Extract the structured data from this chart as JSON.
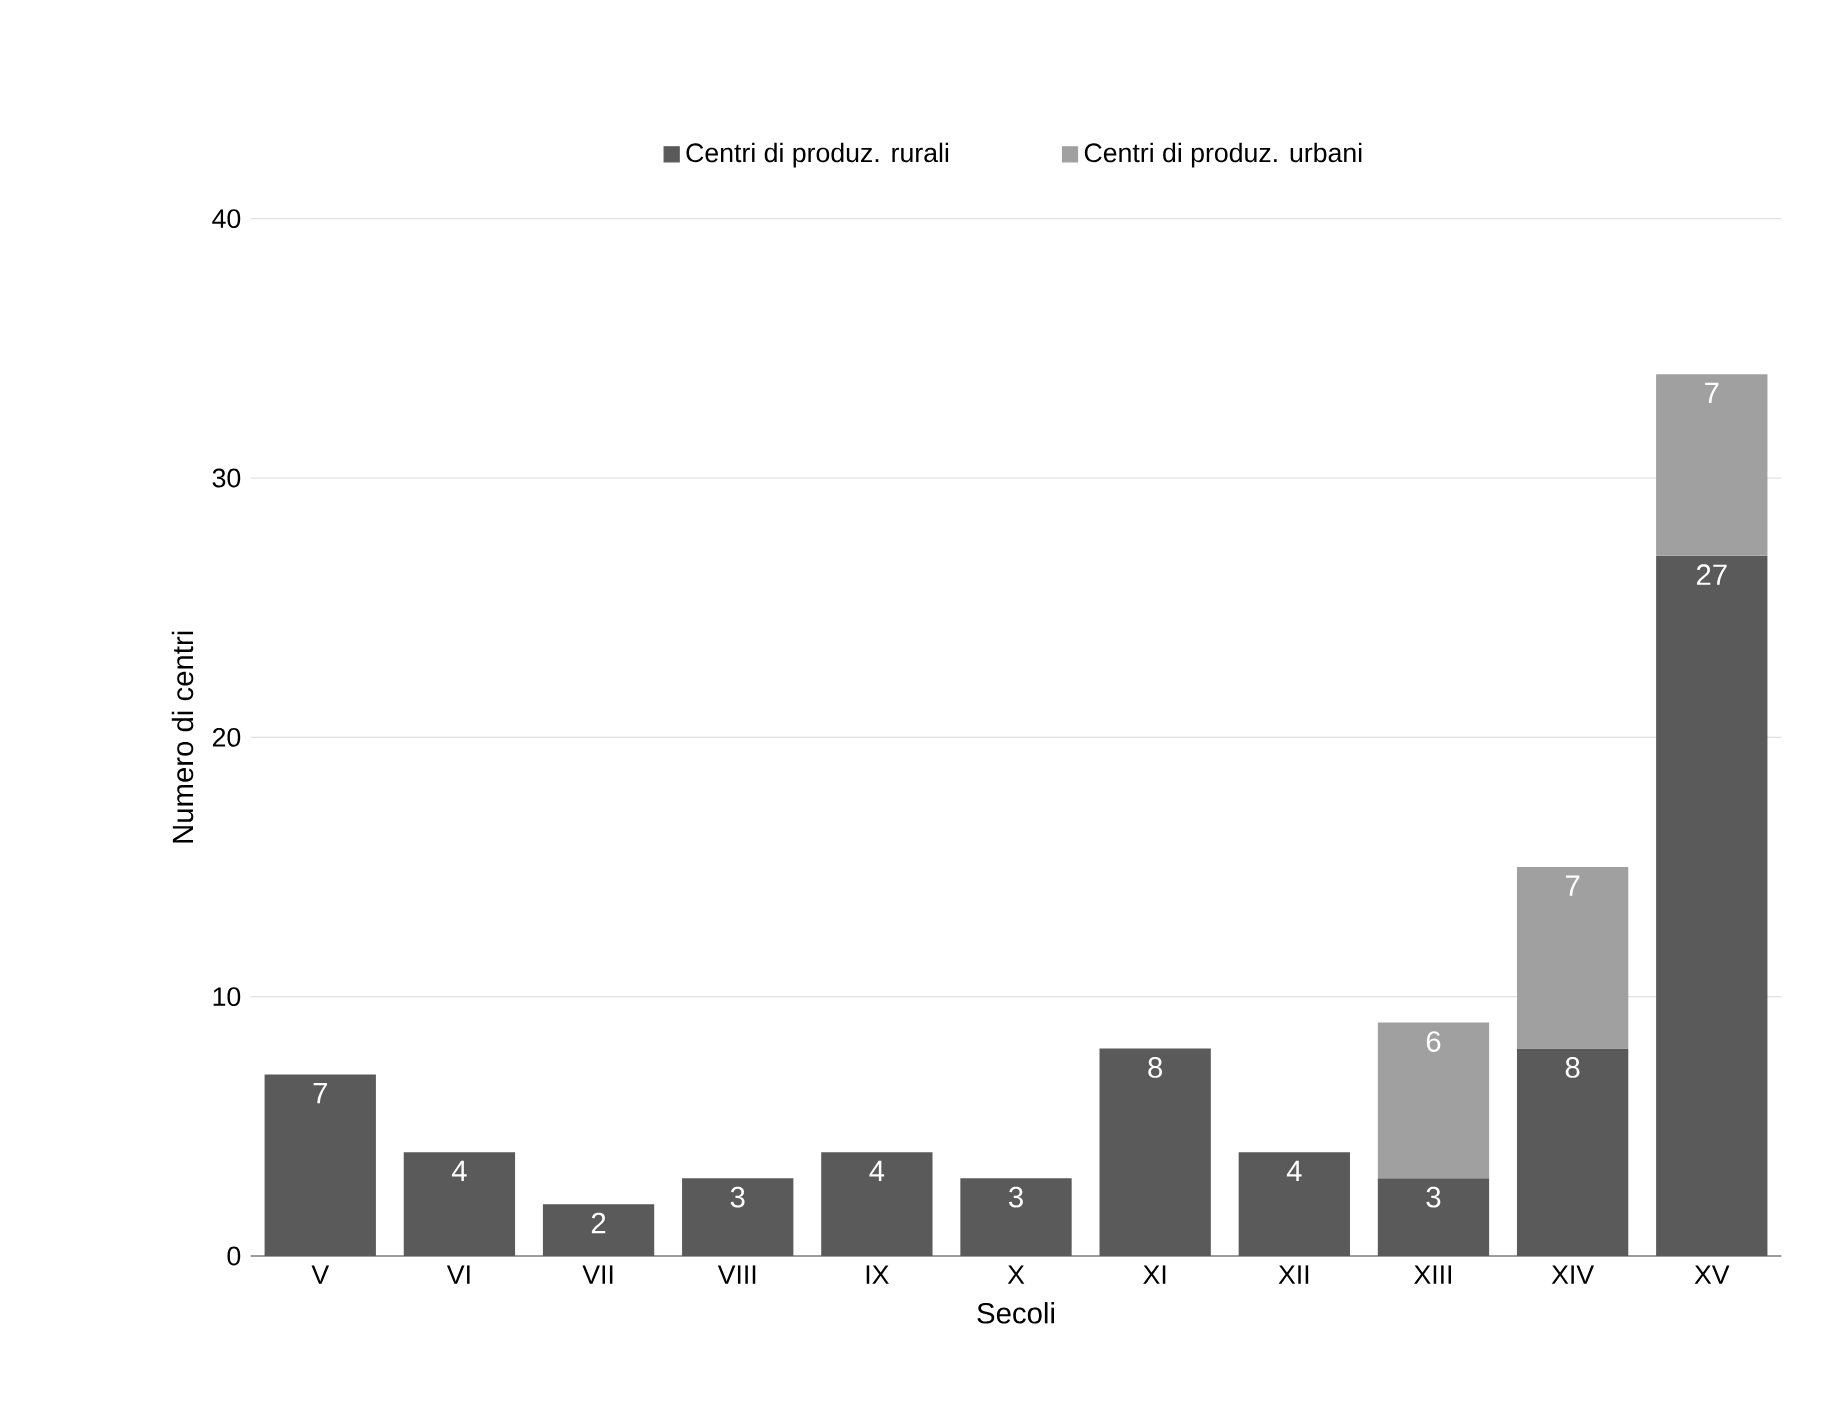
{
  "chart_data": {
    "type": "bar",
    "stacked": true,
    "xlabel": "Secoli",
    "ylabel": "Numero di centri",
    "categories": [
      "V",
      "VI",
      "VII",
      "VIII",
      "IX",
      "X",
      "XI",
      "XII",
      "XIII",
      "XIV",
      "XV"
    ],
    "series": [
      {
        "name": "Centri di produz. rurali",
        "color": "#5a5a5a",
        "values": [
          7,
          4,
          2,
          3,
          4,
          3,
          8,
          4,
          3,
          8,
          27
        ]
      },
      {
        "name": "Centri di produz. urbani",
        "color": "#a0a0a0",
        "values": [
          null,
          null,
          null,
          null,
          null,
          null,
          null,
          null,
          6,
          7,
          7
        ]
      }
    ],
    "ylim": [
      0,
      40
    ],
    "yticks": [
      0,
      10,
      20,
      30,
      40
    ],
    "grid": "y",
    "legend": "top",
    "data_labels": true
  }
}
